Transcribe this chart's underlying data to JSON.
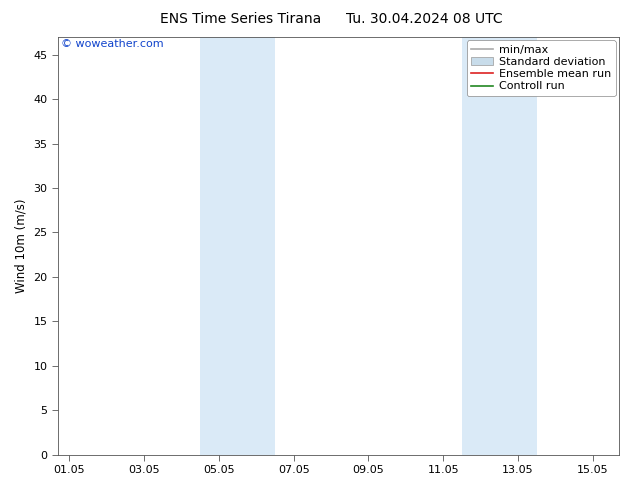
{
  "title_left": "ENS Time Series Tirana",
  "title_right": "Tu. 30.04.2024 08 UTC",
  "ylabel": "Wind 10m (m/s)",
  "ylim": [
    0,
    47
  ],
  "yticks": [
    0,
    5,
    10,
    15,
    20,
    25,
    30,
    35,
    40,
    45
  ],
  "xtick_labels": [
    "01.05",
    "03.05",
    "05.05",
    "07.05",
    "09.05",
    "11.05",
    "13.05",
    "15.05"
  ],
  "xtick_positions": [
    0,
    2,
    4,
    6,
    8,
    10,
    12,
    14
  ],
  "xlim": [
    -0.3,
    14.7
  ],
  "shaded_bands": [
    {
      "x_start": 3.5,
      "x_end": 5.5
    },
    {
      "x_start": 10.5,
      "x_end": 12.5
    }
  ],
  "shade_color": "#daeaf7",
  "background_color": "#ffffff",
  "watermark": "© woweather.com",
  "watermark_color": "#1144cc",
  "legend_items": [
    {
      "label": "min/max",
      "color": "#aaaaaa",
      "type": "line"
    },
    {
      "label": "Standard deviation",
      "color": "#c8dcea",
      "type": "box"
    },
    {
      "label": "Ensemble mean run",
      "color": "#dd2222",
      "type": "line"
    },
    {
      "label": "Controll run",
      "color": "#228822",
      "type": "line"
    }
  ],
  "title_fontsize": 10,
  "tick_fontsize": 8,
  "ylabel_fontsize": 8.5,
  "legend_fontsize": 8,
  "watermark_fontsize": 8
}
